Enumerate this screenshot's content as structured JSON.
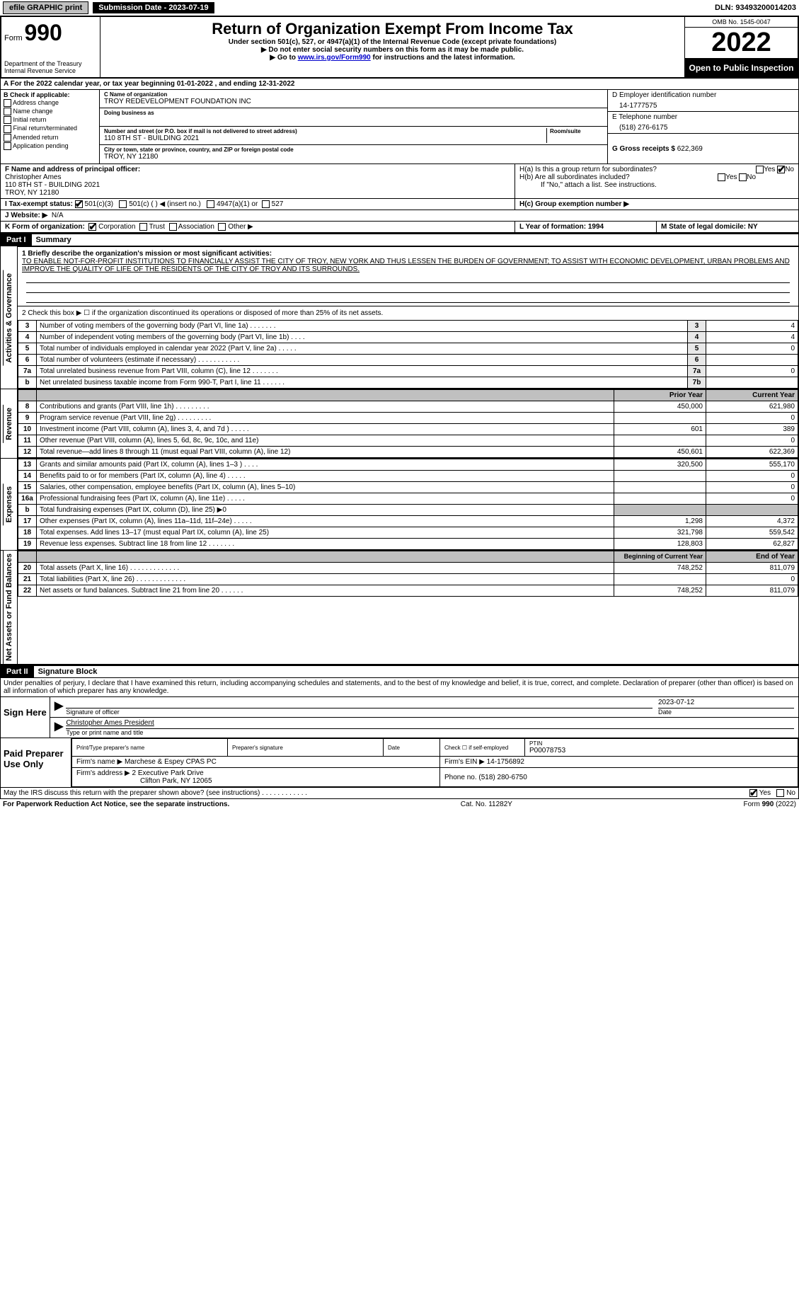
{
  "top": {
    "efile": "efile GRAPHIC print",
    "submission": "Submission Date - 2023-07-19",
    "dln": "DLN: 93493200014203"
  },
  "header": {
    "form_word": "Form",
    "form_num": "990",
    "title": "Return of Organization Exempt From Income Tax",
    "subtitle1": "Under section 501(c), 527, or 4947(a)(1) of the Internal Revenue Code (except private foundations)",
    "subtitle2": "▶ Do not enter social security numbers on this form as it may be made public.",
    "subtitle3_pre": "▶ Go to ",
    "subtitle3_link": "www.irs.gov/Form990",
    "subtitle3_post": " for instructions and the latest information.",
    "dept": "Department of the Treasury\nInternal Revenue Service",
    "omb": "OMB No. 1545-0047",
    "year": "2022",
    "open": "Open to Public Inspection"
  },
  "rowA": "A For the 2022 calendar year, or tax year beginning 01-01-2022    , and ending 12-31-2022",
  "colB": {
    "title": "B Check if applicable:",
    "items": [
      "Address change",
      "Name change",
      "Initial return",
      "Final return/terminated",
      "Amended return",
      "Application pending"
    ]
  },
  "colC": {
    "name_label": "C Name of organization",
    "name": "TROY REDEVELOPMENT FOUNDATION INC",
    "dba_label": "Doing business as",
    "dba": "",
    "street_label": "Number and street (or P.O. box if mail is not delivered to street address)",
    "room_label": "Room/suite",
    "street": "110 8TH ST - BUILDING 2021",
    "city_label": "City or town, state or province, country, and ZIP or foreign postal code",
    "city": "TROY, NY  12180"
  },
  "colD": {
    "d_label": "D Employer identification number",
    "ein": "14-1777575",
    "e_label": "E Telephone number",
    "phone": "(518) 276-6175",
    "g_label": "G Gross receipts $",
    "gross": "622,369"
  },
  "rowF": {
    "f_label": "F  Name and address of principal officer:",
    "name": "Christopher Ames",
    "addr1": "110 8TH ST - BUILDING 2021",
    "addr2": "TROY, NY  12180",
    "ha": "H(a)  Is this a group return for subordinates?",
    "hb": "H(b)  Are all subordinates included?",
    "hb_note": "If \"No,\" attach a list. See instructions.",
    "yes": "Yes",
    "no": "No"
  },
  "rowI": {
    "label": "I   Tax-exempt status:",
    "opt1": "501(c)(3)",
    "opt2": "501(c) (    ) ◀ (insert no.)",
    "opt3": "4947(a)(1) or",
    "opt4": "527",
    "hc": "H(c)  Group exemption number ▶"
  },
  "rowJ": {
    "label": "J   Website: ▶",
    "value": "N/A"
  },
  "rowK": {
    "label": "K Form of organization:",
    "corp": "Corporation",
    "trust": "Trust",
    "assoc": "Association",
    "other": "Other ▶",
    "l": "L Year of formation: 1994",
    "m": "M State of legal domicile: NY"
  },
  "part1": {
    "hdr": "Part I",
    "title": "Summary",
    "q1_label": "1  Briefly describe the organization's mission or most significant activities:",
    "mission": "TO ENABLE NOT-FOR-PROFIT INSTITUTIONS TO FINANCIALLY ASSIST THE CITY OF TROY, NEW YORK AND THUS LESSEN THE BURDEN OF GOVERNMENT; TO ASSIST WITH ECONOMIC DEVELOPMENT, URBAN PROBLEMS AND IMPROVE THE QUALITY OF LIFE OF THE RESIDENTS OF THE CITY OF TROY AND ITS SURROUNDS.",
    "side_gov": "Activities & Governance",
    "side_rev": "Revenue",
    "side_exp": "Expenses",
    "side_net": "Net Assets or Fund Balances",
    "q2": "2    Check this box ▶ ☐  if the organization discontinued its operations or disposed of more than 25% of its net assets.",
    "rows_gov": [
      {
        "n": "3",
        "t": "Number of voting members of the governing body (Part VI, line 1a)   .    .    .    .    .    .    .",
        "ln": "3",
        "v": "4"
      },
      {
        "n": "4",
        "t": "Number of independent voting members of the governing body (Part VI, line 1b)    .    .    .    .",
        "ln": "4",
        "v": "4"
      },
      {
        "n": "5",
        "t": "Total number of individuals employed in calendar year 2022 (Part V, line 2a)    .    .    .    .    .",
        "ln": "5",
        "v": "0"
      },
      {
        "n": "6",
        "t": "Total number of volunteers (estimate if necessary)    .    .    .    .    .    .    .    .    .    .    .",
        "ln": "6",
        "v": ""
      },
      {
        "n": "7a",
        "t": "Total unrelated business revenue from Part VIII, column (C), line 12    .    .    .    .    .    .    .",
        "ln": "7a",
        "v": "0"
      },
      {
        "n": "b",
        "t": "Net unrelated business taxable income from Form 990-T, Part I, line 11    .    .    .    .    .    .",
        "ln": "7b",
        "v": ""
      }
    ],
    "hdr_prior": "Prior Year",
    "hdr_curr": "Current Year",
    "rows_rev": [
      {
        "n": "8",
        "t": "Contributions and grants (Part VIII, line 1h)   .    .    .    .    .    .    .    .    .",
        "p": "450,000",
        "c": "621,980"
      },
      {
        "n": "9",
        "t": "Program service revenue (Part VIII, line 2g)    .    .    .    .    .    .    .    .    .",
        "p": "",
        "c": "0"
      },
      {
        "n": "10",
        "t": "Investment income (Part VIII, column (A), lines 3, 4, and 7d )    .    .    .    .    .",
        "p": "601",
        "c": "389"
      },
      {
        "n": "11",
        "t": "Other revenue (Part VIII, column (A), lines 5, 6d, 8c, 9c, 10c, and 11e)",
        "p": "",
        "c": "0"
      },
      {
        "n": "12",
        "t": "Total revenue—add lines 8 through 11 (must equal Part VIII, column (A), line 12)",
        "p": "450,601",
        "c": "622,369"
      }
    ],
    "rows_exp": [
      {
        "n": "13",
        "t": "Grants and similar amounts paid (Part IX, column (A), lines 1–3 )    .    .    .    .",
        "p": "320,500",
        "c": "555,170"
      },
      {
        "n": "14",
        "t": "Benefits paid to or for members (Part IX, column (A), line 4)    .    .    .    .    .",
        "p": "",
        "c": "0"
      },
      {
        "n": "15",
        "t": "Salaries, other compensation, employee benefits (Part IX, column (A), lines 5–10)",
        "p": "",
        "c": "0"
      },
      {
        "n": "16a",
        "t": "Professional fundraising fees (Part IX, column (A), line 11e)    .    .    .    .    .",
        "p": "",
        "c": "0"
      },
      {
        "n": "b",
        "t": "Total fundraising expenses (Part IX, column (D), line 25) ▶0",
        "p": "shade",
        "c": "shade"
      },
      {
        "n": "17",
        "t": "Other expenses (Part IX, column (A), lines 11a–11d, 11f–24e)    .    .    .    .    .",
        "p": "1,298",
        "c": "4,372"
      },
      {
        "n": "18",
        "t": "Total expenses. Add lines 13–17 (must equal Part IX, column (A), line 25)",
        "p": "321,798",
        "c": "559,542"
      },
      {
        "n": "19",
        "t": "Revenue less expenses. Subtract line 18 from line 12    .    .    .    .    .    .    .",
        "p": "128,803",
        "c": "62,827"
      }
    ],
    "hdr_beg": "Beginning of Current Year",
    "hdr_end": "End of Year",
    "rows_net": [
      {
        "n": "20",
        "t": "Total assets (Part X, line 16)    .    .    .    .    .    .    .    .    .    .    .    .    .",
        "p": "748,252",
        "c": "811,079"
      },
      {
        "n": "21",
        "t": "Total liabilities (Part X, line 26)    .    .    .    .    .    .    .    .    .    .    .    .    .",
        "p": "",
        "c": "0"
      },
      {
        "n": "22",
        "t": "Net assets or fund balances. Subtract line 21 from line 20    .    .    .    .    .    .",
        "p": "748,252",
        "c": "811,079"
      }
    ]
  },
  "part2": {
    "hdr": "Part II",
    "title": "Signature Block",
    "decl": "Under penalties of perjury, I declare that I have examined this return, including accompanying schedules and statements, and to the best of my knowledge and belief, it is true, correct, and complete. Declaration of preparer (other than officer) is based on all information of which preparer has any knowledge.",
    "sign_here": "Sign Here",
    "sig_officer": "Signature of officer",
    "date": "Date",
    "sig_date": "2023-07-12",
    "name_title": "Christopher Ames  President",
    "type_label": "Type or print name and title",
    "paid": "Paid Preparer Use Only",
    "pt_name_lbl": "Print/Type preparer's name",
    "pt_sig_lbl": "Preparer's signature",
    "pt_date_lbl": "Date",
    "pt_check": "Check ☐ if self-employed",
    "ptin_lbl": "PTIN",
    "ptin": "P00078753",
    "firm_name_lbl": "Firm's name    ▶",
    "firm_name": "Marchese & Espey CPAS PC",
    "firm_ein_lbl": "Firm's EIN ▶",
    "firm_ein": "14-1756892",
    "firm_addr_lbl": "Firm's address ▶",
    "firm_addr1": "2 Executive Park Drive",
    "firm_addr2": "Clifton Park, NY  12065",
    "phone_lbl": "Phone no.",
    "phone": "(518) 280-6750",
    "may_irs": "May the IRS discuss this return with the preparer shown above? (see instructions)    .    .    .    .    .    .    .    .    .    .    .    .",
    "yes": "Yes",
    "no": "No"
  },
  "footer": {
    "left": "For Paperwork Reduction Act Notice, see the separate instructions.",
    "mid": "Cat. No. 11282Y",
    "right": "Form 990 (2022)"
  }
}
